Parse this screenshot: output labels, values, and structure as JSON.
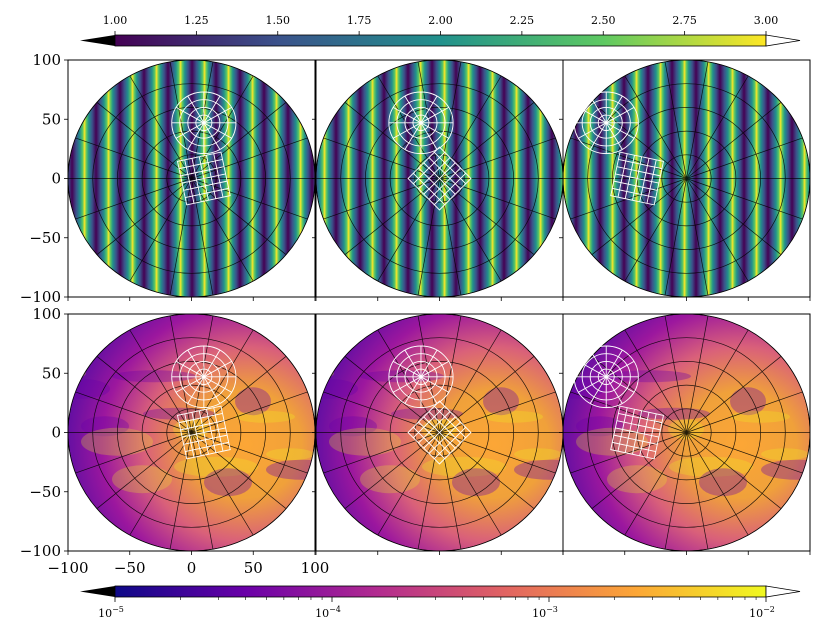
{
  "chart_data": {
    "type": "heatmap",
    "layout": {
      "rows": 2,
      "cols": 3,
      "sharex": true,
      "sharey": true
    },
    "xlim": [
      -100,
      100
    ],
    "ylim": [
      -100,
      100
    ],
    "xticks": [
      "−100",
      "−50",
      "0",
      "50",
      "100"
    ],
    "yticks": [
      "100",
      "50",
      "0",
      "−50",
      "−100"
    ],
    "top_colorbar": {
      "cmap": "viridis",
      "range": [
        1.0,
        3.0
      ],
      "extend": "both",
      "ticks": [
        "1.00",
        "1.25",
        "1.50",
        "1.75",
        "2.00",
        "2.25",
        "2.50",
        "2.75",
        "3.00"
      ],
      "colors": [
        "#440154",
        "#3b528b",
        "#21918c",
        "#5ec962",
        "#fde725"
      ]
    },
    "bottom_colorbar": {
      "cmap": "plasma",
      "scale": "log",
      "range": [
        1e-05,
        0.01
      ],
      "extend": "both",
      "ticks": [
        {
          "base": "10",
          "exp": "−5"
        },
        {
          "base": "10",
          "exp": "−4"
        },
        {
          "base": "10",
          "exp": "−3"
        },
        {
          "base": "10",
          "exp": "−2"
        }
      ],
      "colors": [
        "#0d0887",
        "#6a00a8",
        "#b12a90",
        "#e16462",
        "#fca636",
        "#f0f921"
      ]
    },
    "panels": [
      {
        "row": 0,
        "col": 0,
        "field": "stripes",
        "circle_grid": {
          "x": 10,
          "y": 47,
          "r": 26
        },
        "square_grid": {
          "x": 10,
          "y": 0,
          "half": 18,
          "rot_deg": 12
        }
      },
      {
        "row": 0,
        "col": 1,
        "field": "stripes",
        "circle_grid": {
          "x": -15,
          "y": 47,
          "r": 26
        },
        "square_grid": {
          "x": 0,
          "y": 0,
          "half": 18,
          "rot_deg": 45
        }
      },
      {
        "row": 0,
        "col": 2,
        "field": "stripes",
        "circle_grid": {
          "x": -65,
          "y": 47,
          "r": 26
        },
        "square_grid": {
          "x": -40,
          "y": 0,
          "half": 18,
          "rot_deg": -12
        }
      },
      {
        "row": 1,
        "col": 0,
        "field": "residual",
        "circle_grid": {
          "x": 10,
          "y": 47,
          "r": 26
        },
        "square_grid": {
          "x": 10,
          "y": 0,
          "half": 18,
          "rot_deg": 12
        }
      },
      {
        "row": 1,
        "col": 1,
        "field": "residual",
        "circle_grid": {
          "x": -15,
          "y": 47,
          "r": 26
        },
        "square_grid": {
          "x": 0,
          "y": 0,
          "half": 18,
          "rot_deg": 45
        }
      },
      {
        "row": 1,
        "col": 2,
        "field": "residual",
        "circle_grid": {
          "x": -65,
          "y": 47,
          "r": 26
        },
        "square_grid": {
          "x": -40,
          "y": 0,
          "half": 18,
          "rot_deg": -12
        }
      }
    ]
  }
}
